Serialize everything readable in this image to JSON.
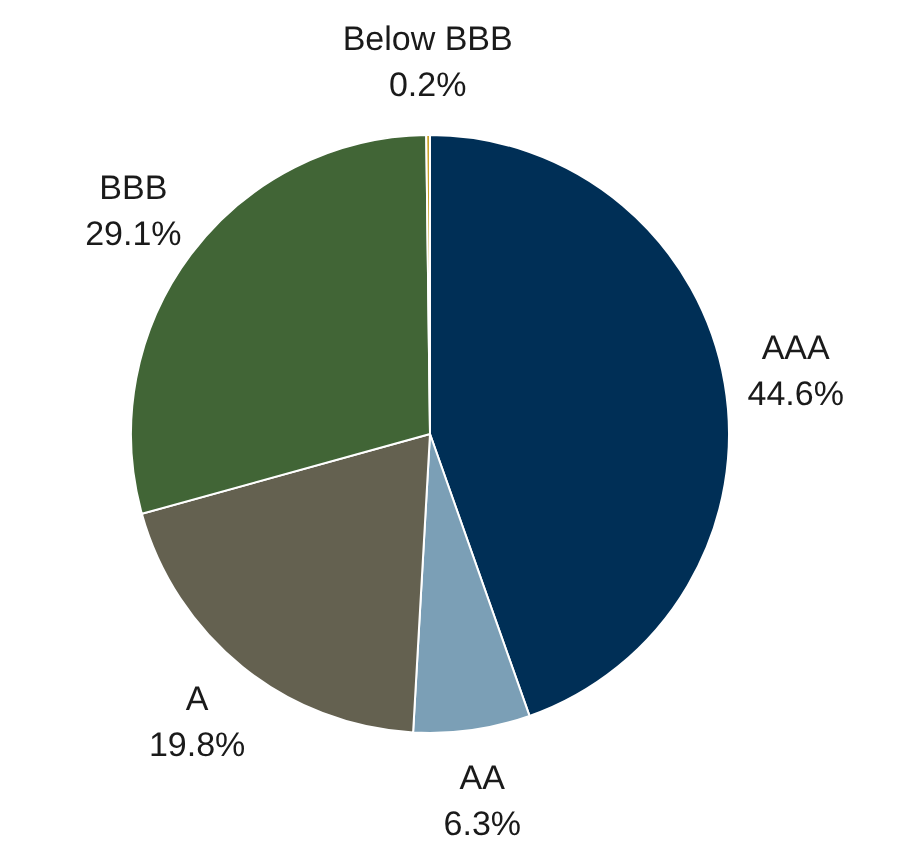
{
  "chart_data": {
    "type": "pie",
    "categories": [
      "AAA",
      "AA",
      "A",
      "BBB",
      "Below BBB"
    ],
    "values": [
      44.6,
      6.3,
      19.8,
      29.1,
      0.2
    ],
    "colors": [
      "#002f56",
      "#7b9fb6",
      "#646150",
      "#416536",
      "#c9a227"
    ],
    "value_labels": [
      "44.6%",
      "6.3%",
      "19.8%",
      "29.1%",
      "0.2%"
    ],
    "legend": false
  }
}
